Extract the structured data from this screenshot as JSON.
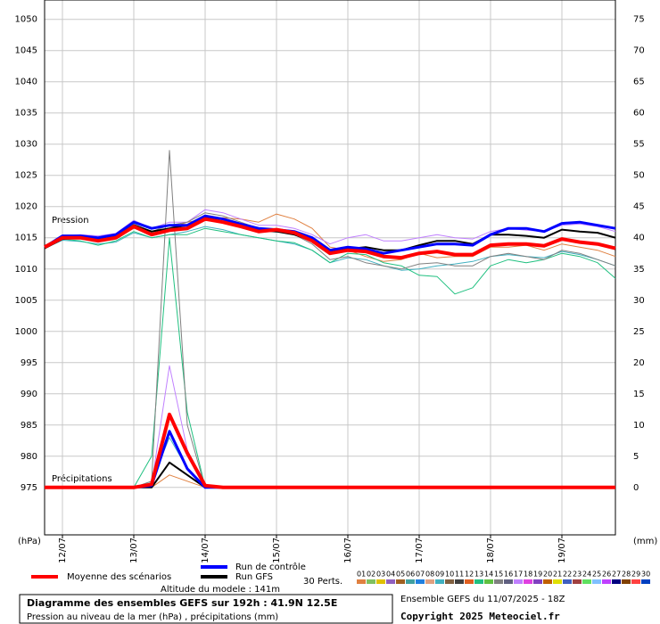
{
  "chart_data": {
    "type": "line",
    "xlim": [
      0,
      192
    ],
    "xticks": [
      {
        "value": 6,
        "label": "12/07"
      },
      {
        "value": 30,
        "label": "13/07"
      },
      {
        "value": 54,
        "label": "14/07"
      },
      {
        "value": 78,
        "label": "15/07"
      },
      {
        "value": 102,
        "label": "16/07"
      },
      {
        "value": 126,
        "label": "17/07"
      },
      {
        "value": 150,
        "label": "18/07"
      },
      {
        "value": 174,
        "label": "19/07"
      }
    ],
    "ylim": [
      967.4,
      1053.1
    ],
    "yticks": [
      975,
      980,
      985,
      990,
      995,
      1000,
      1005,
      1010,
      1015,
      1020,
      1025,
      1030,
      1035,
      1040,
      1045,
      1050
    ],
    "y2lim": [
      -7.6,
      78.1
    ],
    "y2ticks": [
      0,
      5,
      10,
      15,
      20,
      25,
      30,
      35,
      40,
      45,
      50,
      55,
      60,
      65,
      70,
      75
    ],
    "ylabel": "(hPa)",
    "y2label": "(mm)",
    "grid": true,
    "annotations": {
      "pressure": "Pression",
      "precip": "Précipitations"
    },
    "x": [
      0,
      6,
      12,
      18,
      24,
      30,
      36,
      42,
      48,
      54,
      60,
      66,
      72,
      78,
      84,
      90,
      96,
      102,
      108,
      114,
      120,
      126,
      132,
      138,
      144,
      150,
      156,
      162,
      168,
      174,
      180,
      186,
      192
    ],
    "perturbations": {
      "label": "30 Perts.",
      "ids": [
        "01",
        "02",
        "03",
        "04",
        "05",
        "06",
        "07",
        "08",
        "09",
        "10",
        "11",
        "12",
        "13",
        "14",
        "15",
        "16",
        "17",
        "18",
        "19",
        "20",
        "21",
        "22",
        "23",
        "24",
        "25",
        "26",
        "27",
        "28",
        "29",
        "30"
      ],
      "colors": [
        "#e08040",
        "#80c060",
        "#e0c000",
        "#9060c0",
        "#a06020",
        "#40a0a0",
        "#2080e0",
        "#e0a080",
        "#40b0c0",
        "#806040",
        "#404040",
        "#e06020",
        "#20c080",
        "#60c040",
        "#808080",
        "#606080",
        "#c080ff",
        "#e040e0",
        "#8040c0",
        "#c06000",
        "#e0e000",
        "#4060c0",
        "#a04040",
        "#60e060",
        "#80c0ff",
        "#c040ff",
        "#000080",
        "#804000",
        "#ff4040",
        "#0040c0"
      ]
    },
    "series": [
      {
        "member": 0,
        "width": 1,
        "values": [
          1013.5,
          1015,
          1015,
          1014.5,
          1014.8,
          1016.5,
          1015.8,
          1016.5,
          1017.5,
          1018,
          1018.2,
          1018,
          1017.5,
          1018.8,
          1018,
          1016.5,
          1013.5,
          1013,
          1012,
          1011.2,
          1011.5,
          1012.5,
          1011.8,
          1012,
          1012,
          1013.5,
          1013.5,
          1013.8,
          1013,
          1014,
          1013.5,
          1013,
          1012
        ],
        "precip": [
          0,
          0,
          0,
          0,
          0,
          0,
          0,
          2,
          1,
          0,
          0,
          0,
          0,
          0,
          0,
          0,
          0,
          0,
          0,
          0,
          0,
          0,
          0,
          0,
          0,
          0,
          0,
          0,
          0,
          0,
          0,
          0,
          0
        ]
      },
      {
        "member": 8,
        "width": 1,
        "values": [
          1013.3,
          1014.6,
          1014.4,
          1014,
          1014.3,
          1015.8,
          1015,
          1015.5,
          1016,
          1016.8,
          1016.3,
          1015.5,
          1015,
          1014.5,
          1014,
          1013,
          1011,
          1011.8,
          1011.5,
          1010.5,
          1009.8,
          1010,
          1010.5,
          1010.8,
          1011.2,
          1012,
          1012.3,
          1012,
          1011.8,
          1012.8,
          1012.3,
          1011.5,
          1010.5
        ],
        "precip": [
          0,
          0,
          0,
          0,
          0,
          0,
          1,
          8,
          3,
          0,
          0,
          0,
          0,
          0,
          0,
          0,
          0,
          0,
          0,
          0,
          0,
          0,
          0,
          0,
          0,
          0,
          0,
          0,
          0,
          0,
          0,
          0,
          0
        ]
      },
      {
        "member": 12,
        "width": 1,
        "values": [
          1013.5,
          1014.8,
          1014.5,
          1013.8,
          1014.5,
          1016,
          1015,
          1015.5,
          1015.5,
          1016.5,
          1016,
          1015.5,
          1015,
          1014.5,
          1014.2,
          1013,
          1011,
          1012.5,
          1012.3,
          1011,
          1010.5,
          1009,
          1008.8,
          1006,
          1007,
          1010.5,
          1011.5,
          1011,
          1011.5,
          1012.5,
          1012,
          1011,
          1008.5
        ],
        "precip": [
          0,
          0,
          0,
          0,
          0,
          0,
          5,
          40,
          12,
          0,
          0,
          0,
          0,
          0,
          0,
          0,
          0,
          0,
          0,
          0,
          0,
          0,
          0,
          0,
          0,
          0,
          0,
          0,
          0,
          0,
          0,
          0,
          0
        ]
      },
      {
        "member": 16,
        "width": 1,
        "values": [
          1013.5,
          1015.2,
          1015.5,
          1015.3,
          1015.7,
          1017.8,
          1016.5,
          1017.5,
          1017.5,
          1019.5,
          1019,
          1018,
          1017,
          1017,
          1016.5,
          1015.5,
          1014,
          1015,
          1015.5,
          1014.5,
          1014.5,
          1015,
          1015.5,
          1015,
          1014.8,
          1016,
          1016.5,
          1016.2,
          1016,
          1017,
          1017.2,
          1016.8,
          1016
        ],
        "precip": [
          0,
          0,
          0,
          0,
          0,
          0,
          0.5,
          19.5,
          6,
          0,
          0,
          0,
          0,
          0,
          0,
          0,
          0,
          0,
          0,
          0,
          0,
          0,
          0,
          0,
          0,
          0,
          0,
          0,
          0,
          0,
          0,
          0,
          0
        ]
      },
      {
        "member": 14,
        "width": 1,
        "values": [
          1013.5,
          1015,
          1015.2,
          1014.8,
          1015.3,
          1017.2,
          1016,
          1017,
          1017.5,
          1019,
          1018.5,
          1017.5,
          1016.5,
          1016.2,
          1015.5,
          1014,
          1011.5,
          1012,
          1011,
          1010.5,
          1010,
          1010.8,
          1011,
          1010.5,
          1010.5,
          1012,
          1012.5,
          1012,
          1011.5,
          1013,
          1012.5,
          1011.5,
          1010.5
        ],
        "precip": [
          0,
          0,
          0,
          0,
          0,
          0,
          1,
          54,
          10,
          0,
          0,
          0,
          0,
          0,
          0,
          0,
          0,
          0,
          0,
          0,
          0,
          0,
          0,
          0,
          0,
          0,
          0,
          0,
          0,
          0,
          0,
          0,
          0
        ]
      },
      {
        "name": "Run GFS",
        "color": "#000000",
        "width": 2,
        "values": [
          1013.3,
          1014.8,
          1015,
          1014.7,
          1015.2,
          1017,
          1016,
          1016.5,
          1017,
          1018.2,
          1018,
          1017,
          1016.2,
          1016,
          1015.5,
          1014.5,
          1012.8,
          1013.2,
          1013.5,
          1013,
          1013,
          1013.8,
          1014.5,
          1014.5,
          1014,
          1015.5,
          1015.5,
          1015.3,
          1015,
          1016.3,
          1016,
          1015.8,
          1015
        ],
        "precip": [
          0,
          0,
          0,
          0,
          0,
          0,
          0,
          4,
          2,
          0,
          0,
          0,
          0,
          0,
          0,
          0,
          0,
          0,
          0,
          0,
          0,
          0,
          0,
          0,
          0,
          0,
          0,
          0,
          0,
          0,
          0,
          0,
          0
        ]
      },
      {
        "name": "Run de contrôle",
        "color": "#0000ff",
        "width": 3,
        "values": [
          1013.5,
          1015.3,
          1015.3,
          1015,
          1015.5,
          1017.5,
          1016.5,
          1017,
          1017,
          1018.5,
          1018,
          1017.2,
          1016.5,
          1016.3,
          1016,
          1015,
          1013,
          1013.5,
          1013.2,
          1012.5,
          1013,
          1013.5,
          1014,
          1014,
          1013.8,
          1015.5,
          1016.5,
          1016.5,
          1016,
          1017.3,
          1017.5,
          1017,
          1016.5
        ],
        "precip": [
          0,
          0,
          0,
          0,
          0,
          0,
          0.3,
          9,
          3,
          0,
          0,
          0,
          0,
          0,
          0,
          0,
          0,
          0,
          0,
          0,
          0,
          0,
          0,
          0,
          0,
          0,
          0,
          0,
          0,
          0,
          0,
          0,
          0
        ]
      },
      {
        "name": "Moyenne des scénarios",
        "color": "#ff0000",
        "width": 4,
        "values": [
          1013.5,
          1015,
          1015,
          1014.5,
          1015,
          1016.8,
          1015.5,
          1016.2,
          1016.5,
          1018,
          1017.5,
          1016.8,
          1016,
          1016.3,
          1015.8,
          1014.5,
          1012.5,
          1013,
          1012.8,
          1012,
          1011.8,
          1012.5,
          1012.8,
          1012.3,
          1012.3,
          1013.8,
          1014,
          1014,
          1013.7,
          1014.8,
          1014.3,
          1014,
          1013.3
        ],
        "precip": [
          0,
          0,
          0,
          0,
          0,
          0,
          0.5,
          11.7,
          5.5,
          0.3,
          0,
          0,
          0,
          0,
          0,
          0,
          0,
          0,
          0,
          0,
          0,
          0,
          0,
          0,
          0,
          0,
          0,
          0,
          0,
          0,
          0,
          0,
          0
        ]
      }
    ],
    "footer": {
      "altitude": "Altitude du modele : 141m",
      "title": "Diagramme des ensembles GEFS sur 192h : 41.9N 12.5E",
      "subtitle": "Pression au niveau de la mer (hPa) , précipitations (mm)",
      "run": "Ensemble GEFS du 11/07/2025 - 18Z",
      "copyright": "Copyright 2025 Meteociel.fr"
    }
  }
}
